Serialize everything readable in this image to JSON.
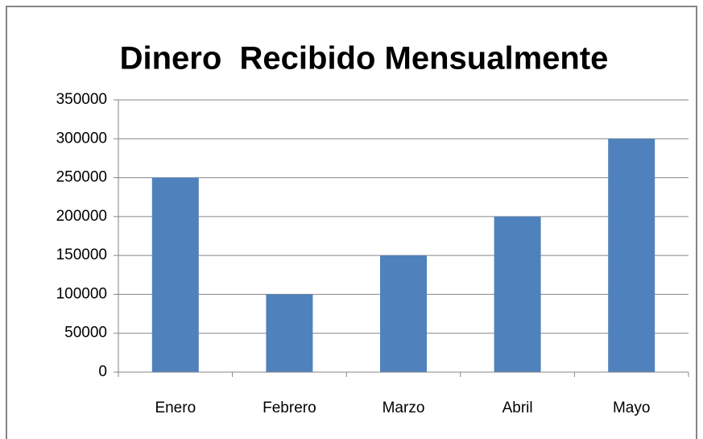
{
  "chart_data": {
    "type": "bar",
    "title": "Dinero  Recibido Mensualmente",
    "categories": [
      "Enero",
      "Febrero",
      "Marzo",
      "Abril",
      "Mayo"
    ],
    "values": [
      250000,
      100000,
      150000,
      200000,
      300000
    ],
    "color": "#4f81bd",
    "ylim": [
      0,
      350000
    ],
    "yticks": [
      0,
      50000,
      100000,
      150000,
      200000,
      250000,
      300000,
      350000
    ],
    "grid": true
  }
}
